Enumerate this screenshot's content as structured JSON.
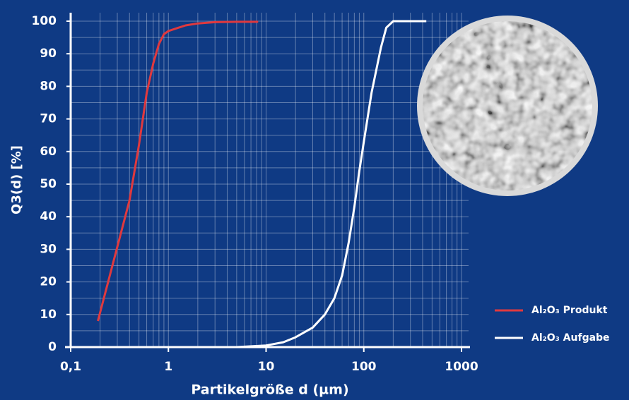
{
  "chart_data": {
    "type": "line",
    "x_label": "Partikelgröße d (µm)",
    "y_label": "Q3(d) [%]",
    "x_scale": "log",
    "xlim": [
      0.1,
      1000
    ],
    "xticks": [
      {
        "value": 0.1,
        "label": "0,1"
      },
      1,
      10,
      100,
      1000
    ],
    "ylim": [
      0,
      100
    ],
    "yticks": [
      0,
      10,
      20,
      30,
      40,
      50,
      60,
      70,
      80,
      90,
      100
    ],
    "grid": true,
    "legend": "bottom-right",
    "series": [
      {
        "name": "Al₂O₃ Produkt",
        "color": "#e0393e",
        "x": [
          0.19,
          0.4,
          0.5,
          0.6,
          0.7,
          0.8,
          0.9,
          1.0,
          1.5,
          2,
          3,
          5,
          8.3
        ],
        "values": [
          8,
          45,
          62,
          78,
          87,
          93,
          96,
          97,
          98.7,
          99.3,
          99.7,
          99.8,
          99.8
        ]
      },
      {
        "name": "Al₂O₃ Aufgabe",
        "color": "#ffffff",
        "x": [
          2,
          5,
          10,
          15,
          20,
          30,
          40,
          50,
          60,
          70,
          80,
          90,
          100,
          120,
          150,
          170,
          200,
          436
        ],
        "values": [
          0,
          0,
          0.5,
          1.5,
          3,
          6,
          10,
          15,
          22,
          32,
          43,
          54,
          63,
          78,
          92,
          98,
          100,
          100
        ]
      }
    ]
  }
}
